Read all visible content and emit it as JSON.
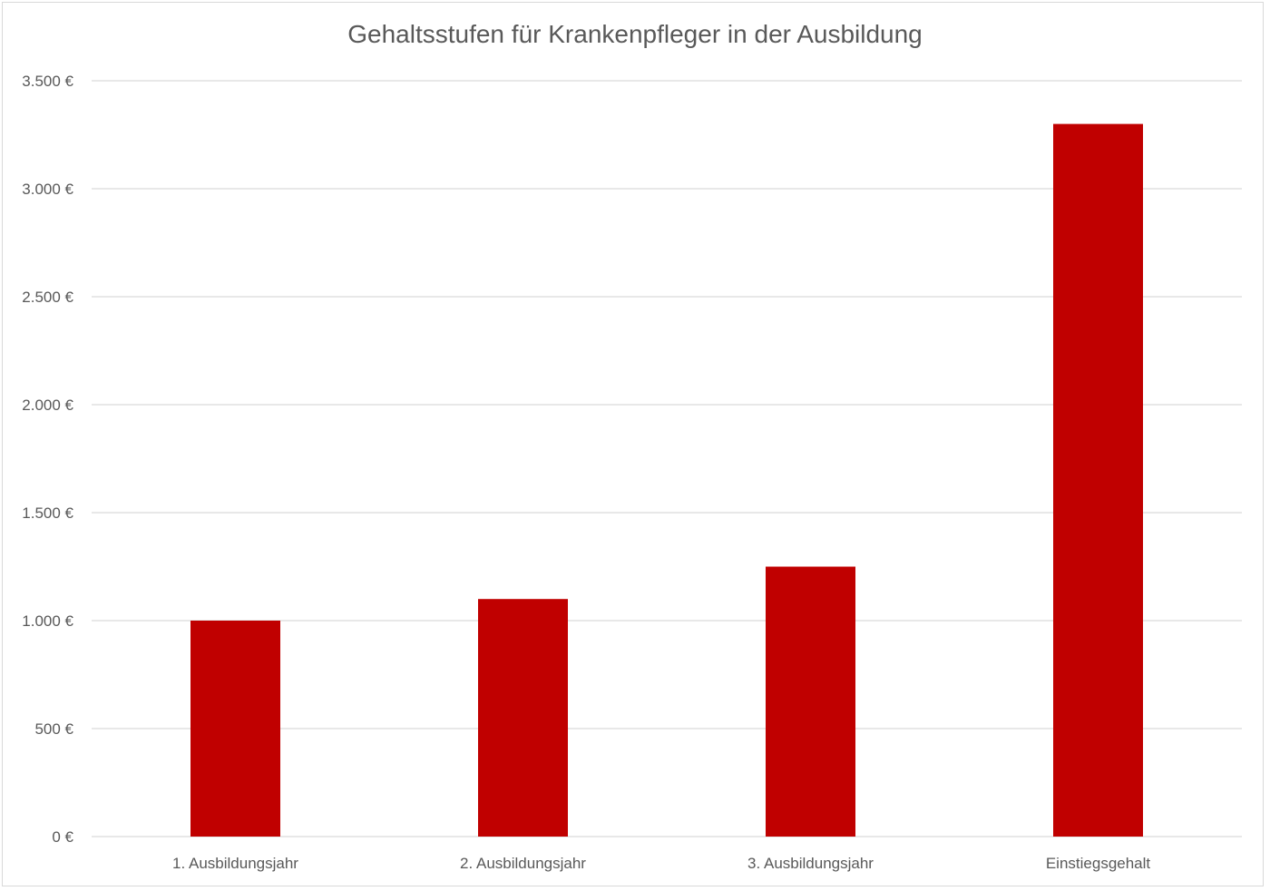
{
  "chart_data": {
    "type": "bar",
    "title": "Gehaltsstufen für Krankenpfleger in der Ausbildung",
    "categories": [
      "1. Ausbildungsjahr",
      "2. Ausbildungsjahr",
      "3. Ausbildungsjahr",
      "Einstiegsgehalt"
    ],
    "series": [
      {
        "values": [
          1000,
          1100,
          1250,
          3300
        ],
        "color": "#c00000"
      }
    ],
    "ylim": [
      0,
      3500
    ],
    "yticks": [
      0,
      500,
      1000,
      1500,
      2000,
      2500,
      3000,
      3500
    ],
    "ytick_labels": [
      "0 €",
      "500 €",
      "1.000 €",
      "1.500 €",
      "2.000 €",
      "2.500 €",
      "3.000 €",
      "3.500 €"
    ],
    "grid": true,
    "legend": "none",
    "xlabel": "",
    "ylabel": ""
  }
}
